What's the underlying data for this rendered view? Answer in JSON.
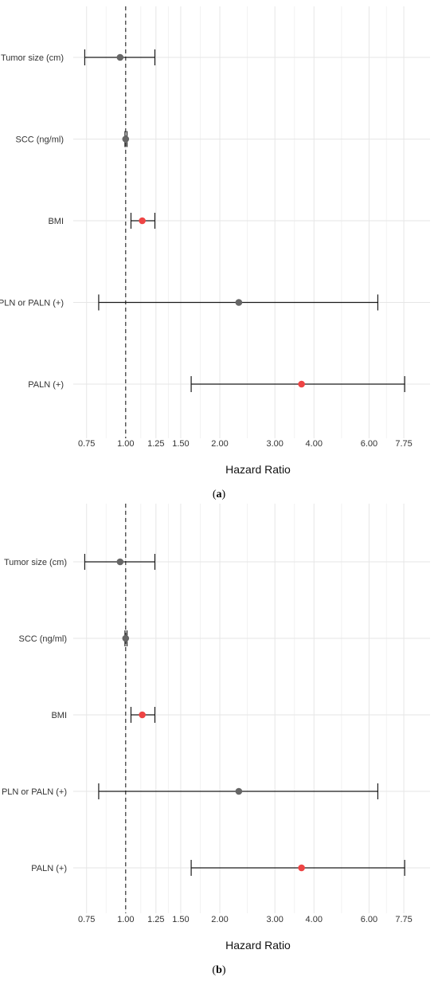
{
  "captions": {
    "a": {
      "open": "(",
      "letter": "a",
      "close": ")"
    },
    "b": {
      "open": "(",
      "letter": "b",
      "close": ")"
    }
  },
  "colors": {
    "nonsignificant_point": "#666666",
    "significant_point": "#ee4444",
    "ci_line": "#1a1a1a",
    "reference_line": "#333333",
    "grid": "#e6e6e6"
  },
  "chart_data": [
    {
      "panel": "a",
      "type": "scatter",
      "subtype": "forest-plot",
      "xlabel": "Hazard Ratio",
      "ylabel": "",
      "x_scale": "log",
      "xlim": [
        0.68,
        9.4
      ],
      "x_ticks": [
        0.75,
        1.0,
        1.25,
        1.5,
        2.0,
        3.0,
        4.0,
        6.0,
        7.75
      ],
      "x_tick_labels": [
        "0.75",
        "1.00",
        "1.25",
        "1.50",
        "2.00",
        "3.00",
        "4.00",
        "6.00",
        "7.75"
      ],
      "reference_line": 1.0,
      "grid": true,
      "categories": [
        "Tumor size (cm)",
        "SCC (ng/ml)",
        "BMI",
        "PLN or PALN (+)",
        "PALN (+)"
      ],
      "hr": [
        0.96,
        1.0,
        1.13,
        2.3,
        3.65
      ],
      "ci_low": [
        0.74,
        0.995,
        1.04,
        0.82,
        1.62
      ],
      "ci_high": [
        1.24,
        1.01,
        1.24,
        6.4,
        7.8
      ],
      "significant": [
        false,
        false,
        true,
        false,
        true
      ]
    },
    {
      "panel": "b",
      "type": "scatter",
      "subtype": "forest-plot",
      "xlabel": "Hazard Ratio",
      "ylabel": "",
      "x_scale": "log",
      "xlim": [
        0.68,
        9.4
      ],
      "x_ticks": [
        0.75,
        1.0,
        1.25,
        1.5,
        2.0,
        3.0,
        4.0,
        6.0,
        7.75
      ],
      "x_tick_labels": [
        "0.75",
        "1.00",
        "1.25",
        "1.50",
        "2.00",
        "3.00",
        "4.00",
        "6.00",
        "7.75"
      ],
      "reference_line": 1.0,
      "grid": true,
      "categories": [
        "Tumor size (cm)",
        "SCC (ng/ml)",
        "BMI",
        "PLN or PALN (+)",
        "PALN (+)"
      ],
      "hr": [
        0.96,
        1.0,
        1.13,
        2.3,
        3.65
      ],
      "ci_low": [
        0.74,
        0.995,
        1.04,
        0.82,
        1.62
      ],
      "ci_high": [
        1.24,
        1.01,
        1.24,
        6.4,
        7.8
      ],
      "significant": [
        false,
        false,
        true,
        false,
        true
      ]
    }
  ]
}
